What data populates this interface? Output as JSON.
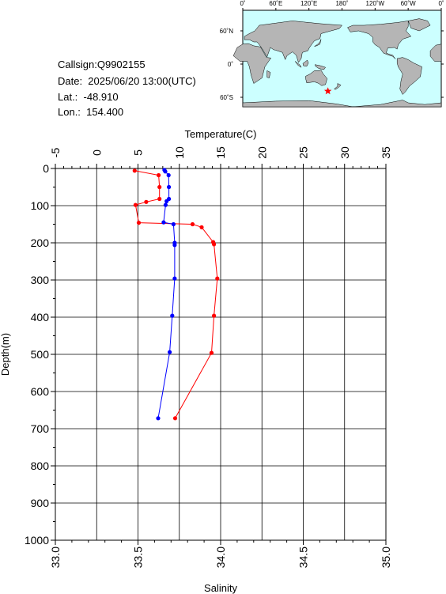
{
  "info": {
    "callsign": "Callsign:Q9902155",
    "date": "Date:  2025/06/20 13:00(UTC)",
    "lat": "Lat.:  -48.910",
    "lon": "Lon.:  154.400"
  },
  "map": {
    "top_labels": [
      "0˚",
      "60˚E",
      "120˚E",
      "180˚",
      "120˚W",
      "60˚W",
      "0˚"
    ],
    "side_labels": [
      "60˚N",
      "0˚",
      "60˚S"
    ],
    "ocean_color": "#ccffff",
    "land_color": "#b5b5b5",
    "marker_color": "#ff0000",
    "marker_icon": "star-icon",
    "marker_lon": 154.4,
    "marker_lat": -48.91
  },
  "chart_data": {
    "type": "line",
    "title": "",
    "top_axis": {
      "label": "Temperature(C)",
      "range": [
        -5,
        35
      ],
      "ticks": [
        -5,
        0,
        5,
        10,
        15,
        20,
        25,
        30,
        35
      ]
    },
    "bottom_axis": {
      "label": "Salinity",
      "range": [
        33.0,
        35.0
      ],
      "ticks": [
        "33.0",
        "33.5",
        "34.0",
        "34.5",
        "35.0"
      ]
    },
    "y_axis": {
      "label": "Depth(m)",
      "range": [
        0,
        1000
      ],
      "inverted": true,
      "ticks": [
        0,
        100,
        200,
        300,
        400,
        500,
        600,
        700,
        800,
        900,
        1000
      ]
    },
    "grid": true,
    "series": [
      {
        "axis": "temperature",
        "color": "#ff0000",
        "points": [
          {
            "x": 4.6,
            "y": 6
          },
          {
            "x": 7.5,
            "y": 18
          },
          {
            "x": 7.6,
            "y": 50
          },
          {
            "x": 7.6,
            "y": 82
          },
          {
            "x": 6.0,
            "y": 90
          },
          {
            "x": 4.7,
            "y": 98
          },
          {
            "x": 5.1,
            "y": 146
          },
          {
            "x": 11.6,
            "y": 150
          },
          {
            "x": 12.7,
            "y": 158
          },
          {
            "x": 14.1,
            "y": 198
          },
          {
            "x": 14.2,
            "y": 204
          },
          {
            "x": 14.6,
            "y": 296
          },
          {
            "x": 14.2,
            "y": 396
          },
          {
            "x": 13.9,
            "y": 496
          },
          {
            "x": 9.5,
            "y": 672
          }
        ]
      },
      {
        "axis": "salinity",
        "color": "#0000ff",
        "points": [
          {
            "x": 33.66,
            "y": 4
          },
          {
            "x": 33.665,
            "y": 8
          },
          {
            "x": 33.685,
            "y": 18
          },
          {
            "x": 33.687,
            "y": 50
          },
          {
            "x": 33.687,
            "y": 82
          },
          {
            "x": 33.673,
            "y": 88
          },
          {
            "x": 33.667,
            "y": 98
          },
          {
            "x": 33.655,
            "y": 145
          },
          {
            "x": 33.715,
            "y": 150
          },
          {
            "x": 33.722,
            "y": 200
          },
          {
            "x": 33.722,
            "y": 206
          },
          {
            "x": 33.722,
            "y": 296
          },
          {
            "x": 33.707,
            "y": 396
          },
          {
            "x": 33.692,
            "y": 494
          },
          {
            "x": 33.622,
            "y": 672
          }
        ]
      }
    ]
  }
}
